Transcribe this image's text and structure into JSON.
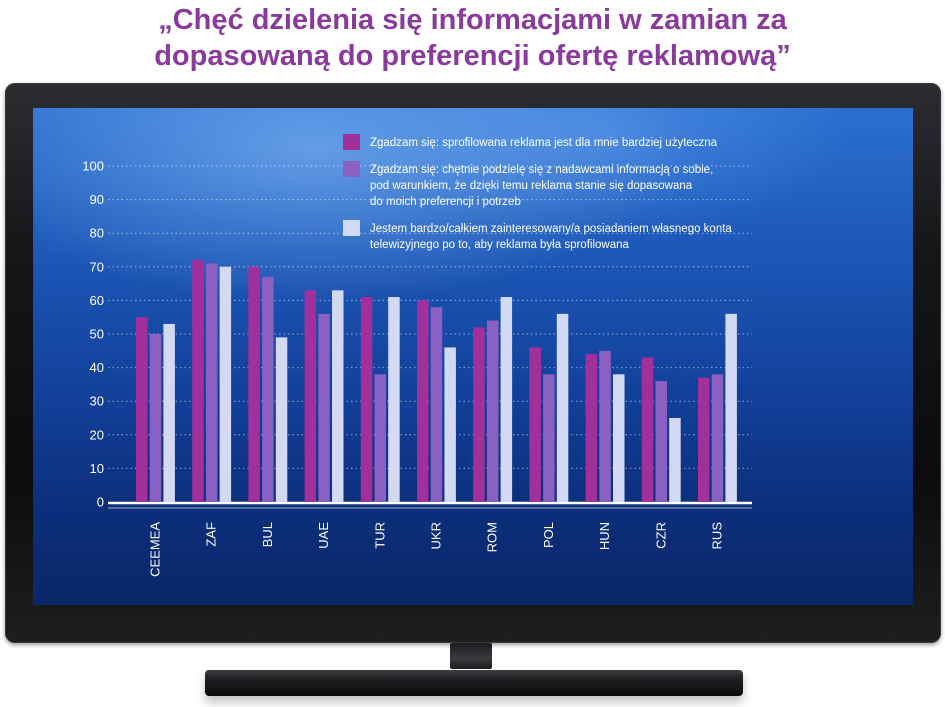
{
  "title": {
    "line1": "„Chęć dzielenia się informacjami w zamian za",
    "line2": "dopasowaną do preferencji ofertę reklamową”"
  },
  "colors": {
    "title": "#8a3a9c",
    "series": [
      "#a2309c",
      "#8a60c2",
      "#d3d9f2"
    ]
  },
  "chart_data": {
    "type": "bar",
    "title": "„Chęć dzielenia się informacjami w zamian za dopasowaną do preferencji ofertę reklamową”",
    "categories": [
      "CEEMEA",
      "ZAF",
      "BUL",
      "UAE",
      "TUR",
      "UKR",
      "ROM",
      "POL",
      "HUN",
      "CZR",
      "RUS"
    ],
    "series": [
      {
        "name": "Zgadzam się: sprofilowana reklama jest dla mnie bardziej użyteczna",
        "legend_lines": [
          "Zgadzam się: sprofilowana reklama jest dla mnie bardziej użyteczna"
        ],
        "values": [
          55,
          72,
          70,
          63,
          61,
          60,
          52,
          46,
          44,
          43,
          37
        ]
      },
      {
        "name": "Zgadzam się: chętnie podzielę się z nadawcami informacją o sobie, pod warunkiem, że dzięki temu reklama stanie się dopasowana do moich preferencji i potrzeb",
        "legend_lines": [
          "Zgadzam się: chętnie podzielę się z nadawcami informacją o sobie,",
          "pod warunkiem, że dzięki temu reklama stanie się dopasowana",
          "do moich preferencji i potrzeb"
        ],
        "values": [
          50,
          71,
          67,
          56,
          38,
          58,
          54,
          38,
          45,
          36,
          38
        ]
      },
      {
        "name": "Jestem bardzo/całkiem zainteresowany/a posiadaniem własnego konta telewizyjnego po to, aby reklama była sprofilowana",
        "legend_lines": [
          "Jestem bardzo/całkiem zainteresowany/a posiadaniem własnego konta",
          "telewizyjnego po to, aby reklama była sprofilowana"
        ],
        "values": [
          53,
          70,
          49,
          63,
          61,
          46,
          61,
          56,
          38,
          25,
          56
        ]
      }
    ],
    "yticks": [
      0,
      10,
      20,
      30,
      40,
      50,
      60,
      70,
      80,
      90,
      100
    ],
    "ylim": [
      0,
      100
    ],
    "grid": true,
    "legend_position": "top-right",
    "xlabel": "",
    "ylabel": ""
  }
}
